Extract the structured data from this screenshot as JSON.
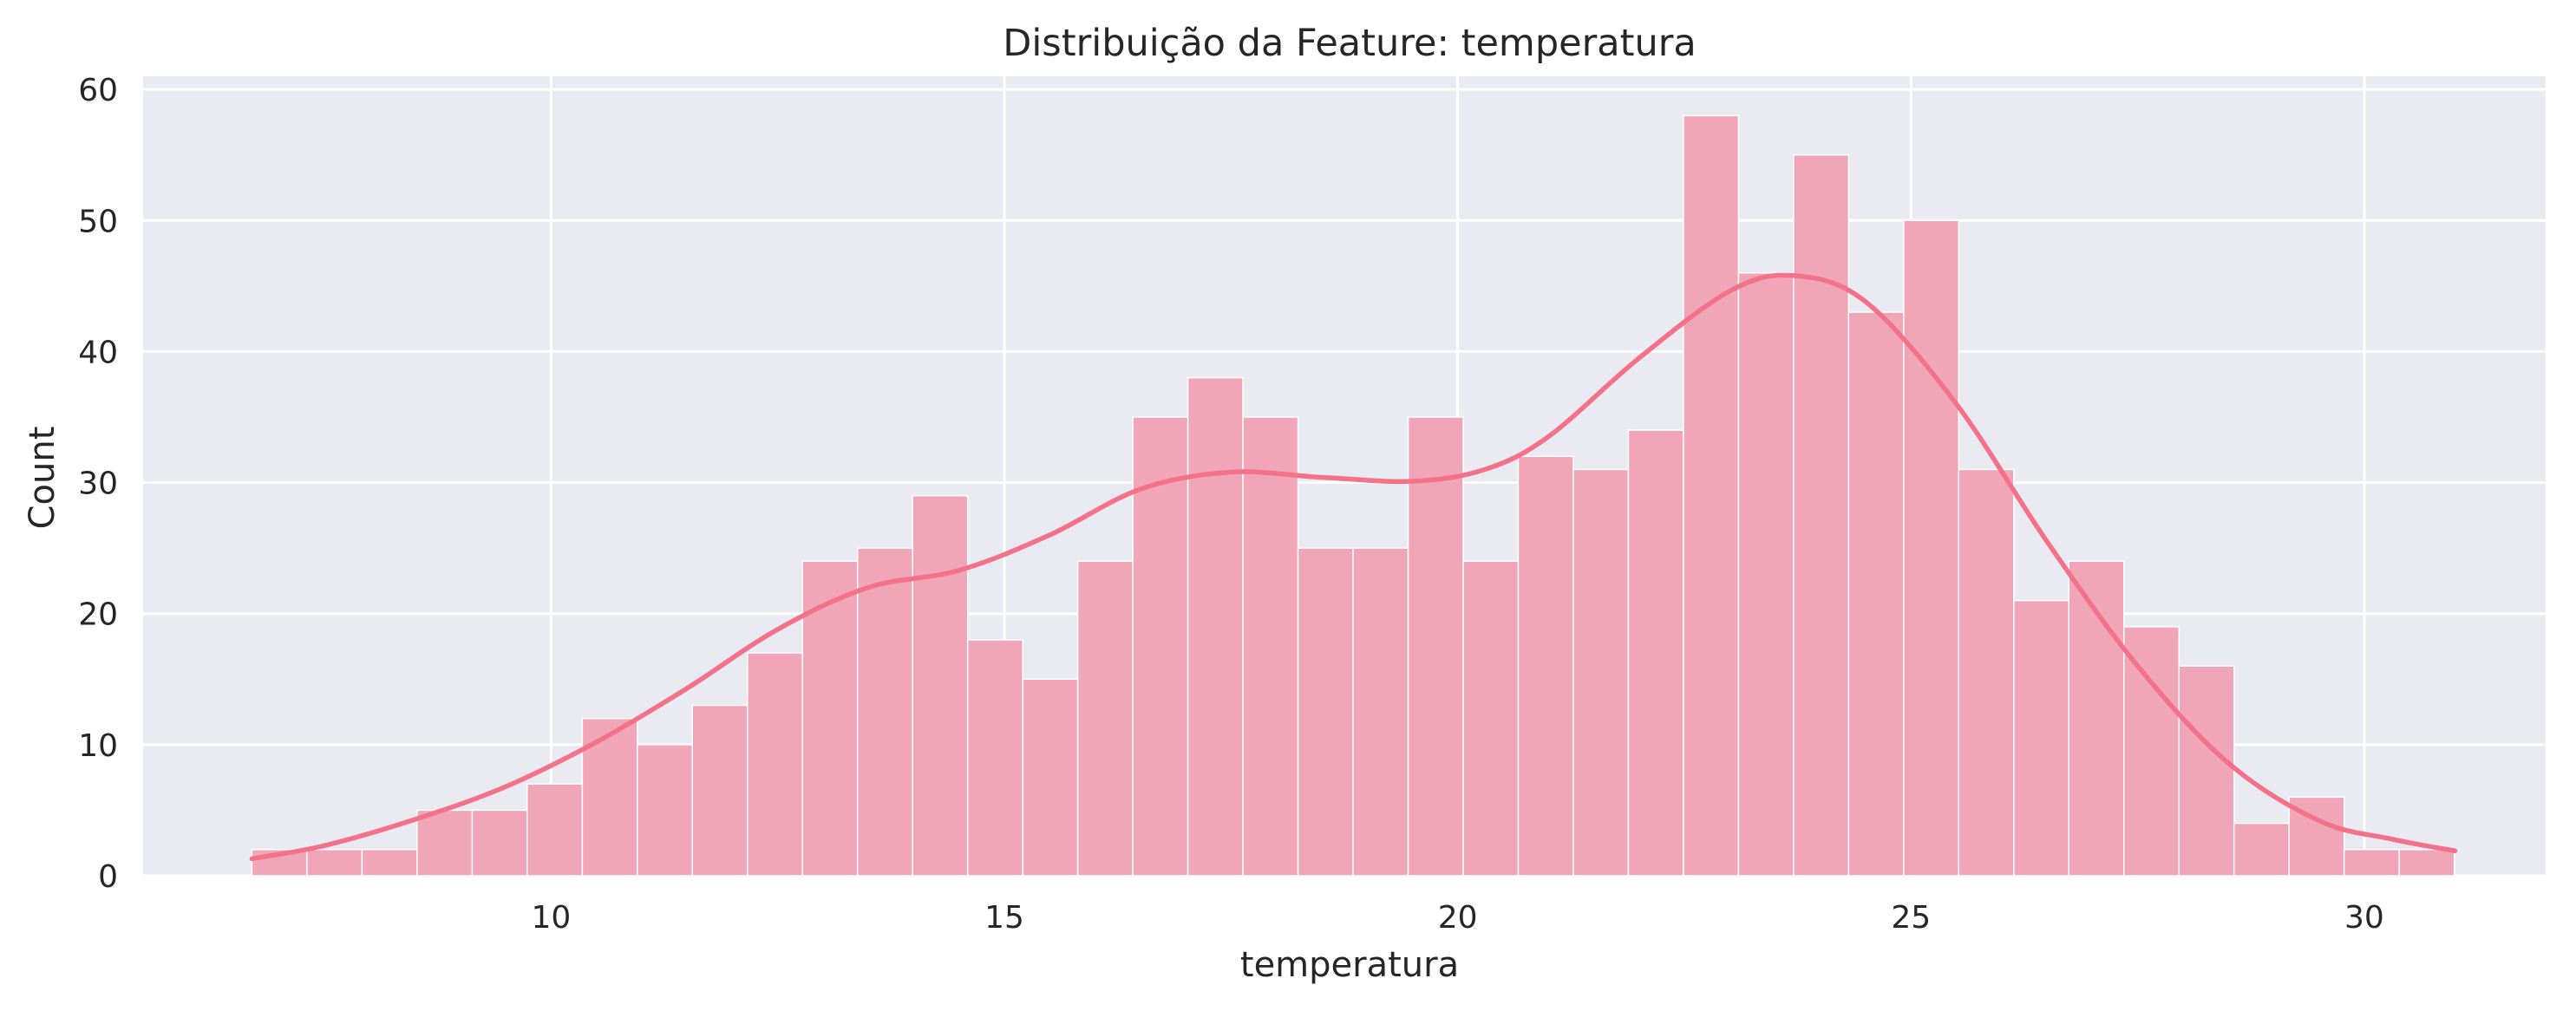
{
  "chart_data": {
    "type": "bar",
    "title": "Distribuição da Feature: temperatura",
    "xlabel": "temperatura",
    "ylabel": "Count",
    "xlim": [
      5.5,
      32.0
    ],
    "ylim": [
      0,
      61
    ],
    "xticks": [
      10,
      15,
      20,
      25,
      30
    ],
    "yticks": [
      0,
      10,
      20,
      30,
      40,
      50,
      60
    ],
    "grid": true,
    "legend": "none",
    "colors": {
      "background": "#eaeaf2",
      "grid": "#ffffff",
      "bar_fill": "#f0a6b6",
      "bar_edge": "#ffffff",
      "kde_line": "#f37189"
    },
    "bins": {
      "start": 6.7,
      "width": 0.6073,
      "counts": [
        2,
        2,
        2,
        5,
        5,
        7,
        12,
        10,
        13,
        17,
        24,
        25,
        29,
        18,
        15,
        24,
        35,
        38,
        35,
        25,
        25,
        35,
        24,
        32,
        31,
        34,
        58,
        46,
        55,
        43,
        50,
        31,
        21,
        24,
        19,
        16,
        4,
        6,
        2,
        2
      ]
    },
    "series": [
      {
        "type": "line",
        "x": [
          6.7,
          7.5,
          8.5,
          9.5,
          10.5,
          11.5,
          12.5,
          13.5,
          14.5,
          15.5,
          16.5,
          17.5,
          18.5,
          19.5,
          20.3,
          21.0,
          22.0,
          23.0,
          23.7,
          24.5,
          25.5,
          26.5,
          27.5,
          28.5,
          29.5,
          30.3,
          31.0
        ],
        "values": [
          1.3,
          2.3,
          4.3,
          6.8,
          10.2,
          14.3,
          18.8,
          22.0,
          23.3,
          26.0,
          29.5,
          30.8,
          30.4,
          30.1,
          31.0,
          33.5,
          39.5,
          44.6,
          45.8,
          43.8,
          36.0,
          25.5,
          16.0,
          8.6,
          4.2,
          2.8,
          1.9
        ]
      }
    ]
  }
}
